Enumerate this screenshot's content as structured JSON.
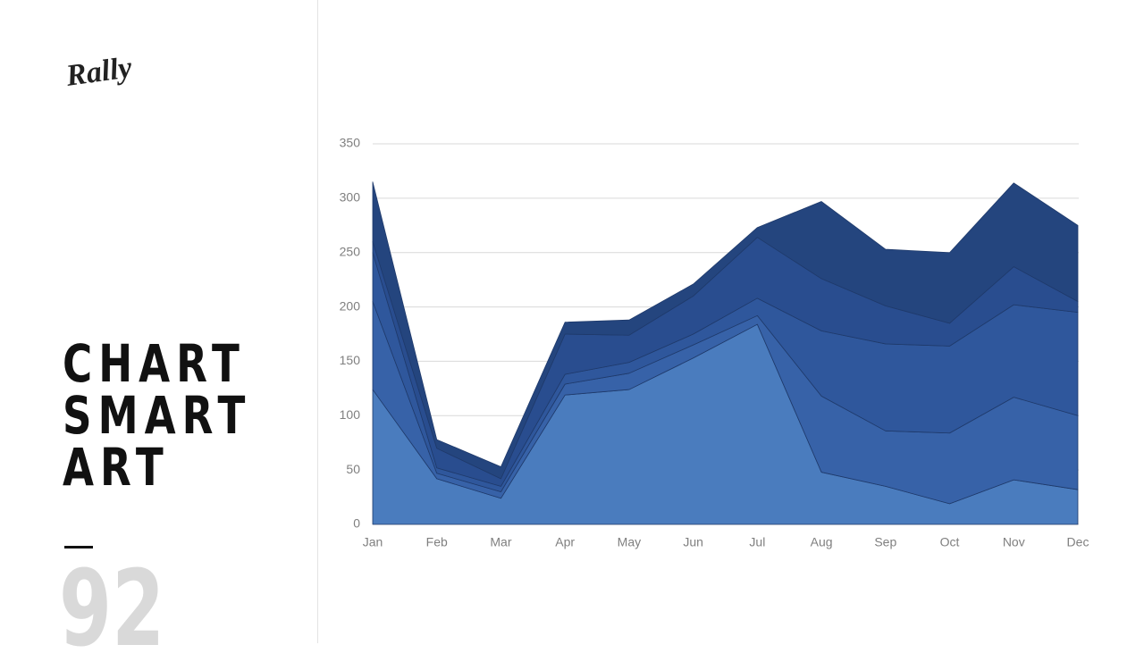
{
  "slide": {
    "logo": "Rally",
    "title_lines": [
      "CHART",
      "SMART",
      "ART"
    ],
    "page_number": "92"
  },
  "chart_data": {
    "type": "stacked-area",
    "categories": [
      "Jan",
      "Feb",
      "Mar",
      "Apr",
      "May",
      "Jun",
      "Jul",
      "Aug",
      "Sep",
      "Oct",
      "Nov",
      "Dec"
    ],
    "series": [
      {
        "color": "#4a7cbe",
        "values": [
          124,
          42,
          24,
          119,
          124,
          153,
          184,
          48,
          35,
          19,
          41,
          32
        ]
      },
      {
        "color": "#3762a8",
        "values": [
          81,
          5,
          6,
          10,
          15,
          12,
          8,
          70,
          51,
          65,
          76,
          68
        ]
      },
      {
        "color": "#2f579c",
        "values": [
          45,
          5,
          5,
          9,
          10,
          10,
          16,
          60,
          80,
          80,
          85,
          95
        ]
      },
      {
        "color": "#294d8f",
        "values": [
          10,
          18,
          7,
          37,
          25,
          35,
          56,
          48,
          35,
          21,
          35,
          10
        ]
      },
      {
        "color": "#24457e",
        "values": [
          55,
          8,
          11,
          11,
          14,
          11,
          9,
          71,
          52,
          65,
          77,
          70
        ]
      }
    ],
    "ylim": [
      0,
      350
    ],
    "yticks": [
      0,
      50,
      100,
      150,
      200,
      250,
      300,
      350
    ],
    "grid": true
  }
}
